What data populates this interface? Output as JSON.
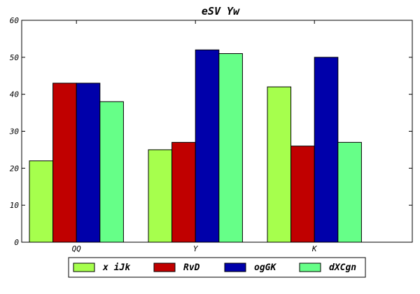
{
  "chart_data": {
    "type": "bar",
    "title": "eSV Yw",
    "xlabel": "",
    "ylabel": "",
    "categories": [
      "QQ",
      "Y",
      "K"
    ],
    "series": [
      {
        "name": "x iJk",
        "color": "#a6ff4d",
        "values": [
          22,
          25,
          42
        ]
      },
      {
        "name": "RvD",
        "color": "#c00000",
        "values": [
          43,
          27,
          26
        ]
      },
      {
        "name": "ogGK",
        "color": "#0000aa",
        "values": [
          43,
          52,
          50
        ]
      },
      {
        "name": "dXCgn",
        "color": "#66ff88",
        "values": [
          38,
          51,
          27
        ]
      }
    ],
    "ylim": [
      0,
      60
    ],
    "yticks": [
      0,
      10,
      20,
      30,
      40,
      50,
      60
    ],
    "grid": false,
    "legend_position": "bottom"
  }
}
